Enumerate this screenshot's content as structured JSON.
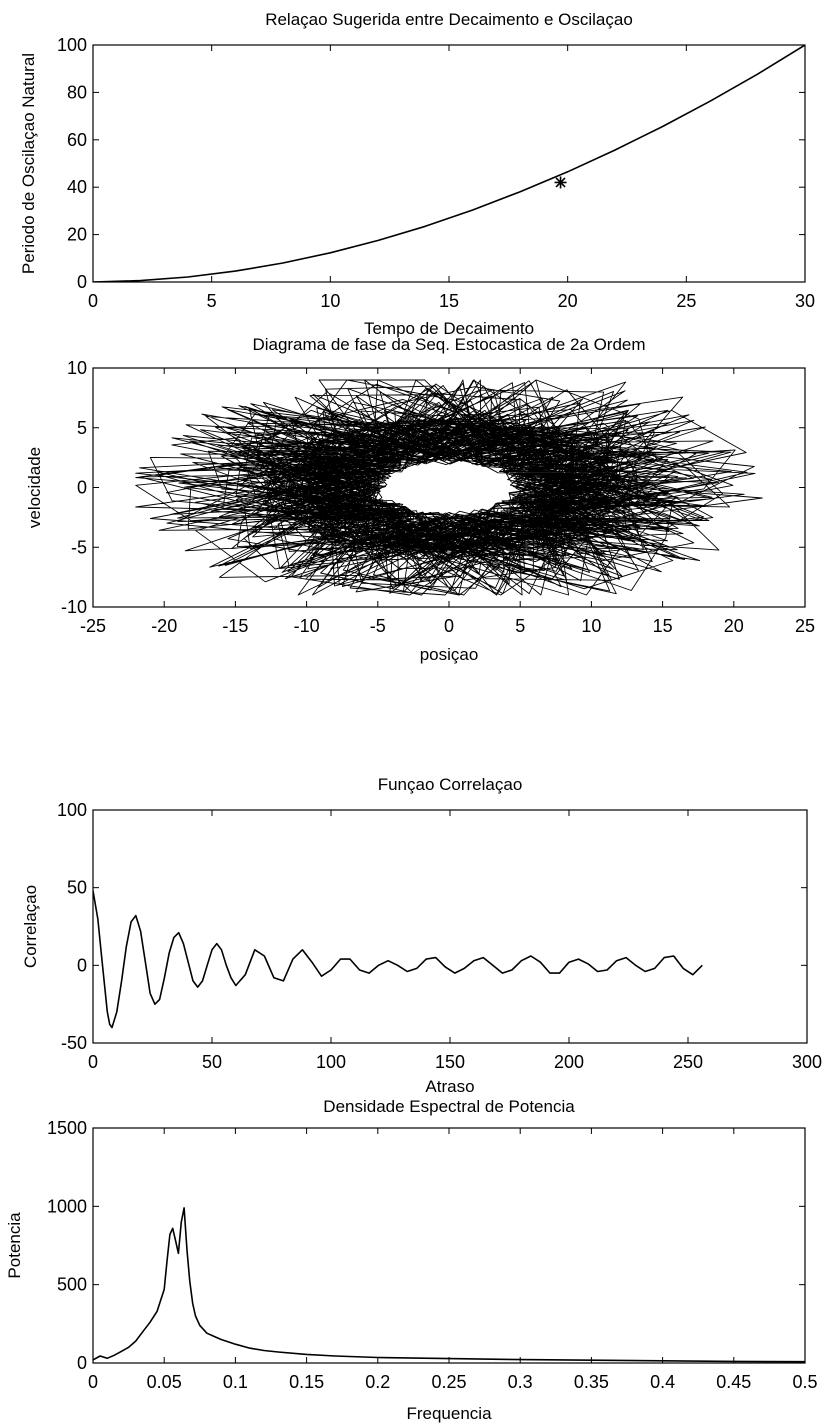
{
  "page": {
    "background": "#ffffff",
    "ink": "#000000"
  },
  "chart_data": [
    {
      "id": "c1",
      "type": "line",
      "title": "Relaçao Sugerida entre Decaimento e Oscilaçao",
      "xlabel": "Tempo de Decaimento",
      "ylabel": "Periodo de Oscilaçao Natural",
      "xlim": [
        0,
        30
      ],
      "ylim": [
        0,
        100
      ],
      "xticks": [
        0,
        5,
        10,
        15,
        20,
        25,
        30
      ],
      "yticks": [
        0,
        20,
        40,
        60,
        80,
        100
      ],
      "grid": false,
      "series": [
        {
          "x": [
            0,
            2,
            4,
            6,
            8,
            10,
            12,
            14,
            16,
            18,
            20,
            22,
            24,
            26,
            28,
            30
          ],
          "y": [
            0,
            0.6,
            2.1,
            4.6,
            8.0,
            12.3,
            17.5,
            23.5,
            30.4,
            38.1,
            46.5,
            55.7,
            65.6,
            76.3,
            87.7,
            100
          ]
        }
      ],
      "marker": {
        "symbol": "*",
        "x": 19.7,
        "y": 42
      }
    },
    {
      "id": "c2",
      "type": "line",
      "title": "Diagrama de fase da Seq. Estocastica de 2a Ordem",
      "xlabel": "posiçao",
      "ylabel": "velocidade",
      "xlim": [
        -25,
        25
      ],
      "ylim": [
        -10,
        10
      ],
      "xticks": [
        -25,
        -20,
        -15,
        -10,
        -5,
        0,
        5,
        10,
        15,
        20,
        25
      ],
      "yticks": [
        -10,
        -5,
        0,
        5,
        10
      ],
      "grid": false,
      "phase_orbit": {
        "form": "ellipse",
        "center": [
          0,
          0
        ],
        "outer_semi_axes": [
          22,
          9
        ],
        "dense_core_semi_axes": [
          13,
          6
        ]
      }
    },
    {
      "id": "c3",
      "type": "line",
      "title": "Funçao Correlaçao",
      "xlabel": "Atraso",
      "ylabel": "Correlaçao",
      "xlim": [
        0,
        300
      ],
      "ylim": [
        -50,
        100
      ],
      "xticks": [
        0,
        50,
        100,
        150,
        200,
        250,
        300
      ],
      "yticks": [
        -50,
        0,
        50,
        100
      ],
      "grid": false,
      "series": [
        {
          "x": [
            0,
            2,
            4,
            6,
            7,
            8,
            10,
            12,
            14,
            16,
            18,
            20,
            22,
            24,
            26,
            28,
            30,
            32,
            34,
            36,
            38,
            40,
            42,
            44,
            46,
            48,
            50,
            52,
            54,
            56,
            58,
            60,
            64,
            68,
            72,
            76,
            80,
            84,
            88,
            92,
            96,
            100,
            104,
            108,
            112,
            116,
            120,
            124,
            128,
            132,
            136,
            140,
            144,
            148,
            152,
            156,
            160,
            164,
            168,
            172,
            176,
            180,
            184,
            188,
            192,
            196,
            200,
            204,
            208,
            212,
            216,
            220,
            224,
            228,
            232,
            236,
            240,
            244,
            248,
            252,
            256
          ],
          "y": [
            48,
            30,
            0,
            -30,
            -38,
            -40,
            -30,
            -10,
            12,
            28,
            32,
            22,
            2,
            -18,
            -25,
            -22,
            -8,
            8,
            18,
            21,
            14,
            2,
            -10,
            -14,
            -10,
            0,
            10,
            14,
            10,
            0,
            -8,
            -13,
            -6,
            10,
            6,
            -8,
            -10,
            4,
            10,
            2,
            -7,
            -3,
            4,
            4,
            -3,
            -5,
            0,
            3,
            0,
            -4,
            -2,
            4,
            5,
            -1,
            -5,
            -2,
            3,
            5,
            0,
            -5,
            -3,
            3,
            6,
            2,
            -5,
            -5,
            2,
            4,
            1,
            -4,
            -3,
            3,
            5,
            0,
            -4,
            -2,
            5,
            6,
            -2,
            -6,
            0
          ]
        }
      ]
    },
    {
      "id": "c4",
      "type": "line",
      "title": "Densidade Espectral de Potencia",
      "xlabel": "Frequencia",
      "ylabel": "Potencia",
      "xlim": [
        0,
        0.5
      ],
      "ylim": [
        0,
        1500
      ],
      "xticks": [
        0,
        0.05,
        0.1,
        0.15,
        0.2,
        0.25,
        0.3,
        0.35,
        0.4,
        0.45,
        0.5
      ],
      "xtick_labels": [
        "0",
        "0.05",
        "0.1",
        "0.15",
        "0.2",
        "0.25",
        "0.3",
        "0.35",
        "0.4",
        "0.45",
        "0.5"
      ],
      "yticks": [
        0,
        500,
        1000,
        1500
      ],
      "grid": false,
      "series": [
        {
          "x": [
            0,
            0.005,
            0.01,
            0.015,
            0.02,
            0.025,
            0.03,
            0.035,
            0.04,
            0.045,
            0.05,
            0.052,
            0.054,
            0.056,
            0.058,
            0.06,
            0.062,
            0.064,
            0.066,
            0.068,
            0.07,
            0.072,
            0.075,
            0.08,
            0.085,
            0.09,
            0.1,
            0.11,
            0.12,
            0.13,
            0.15,
            0.17,
            0.2,
            0.25,
            0.3,
            0.35,
            0.4,
            0.45,
            0.5
          ],
          "y": [
            20,
            45,
            30,
            50,
            75,
            100,
            140,
            200,
            260,
            330,
            470,
            650,
            820,
            860,
            780,
            700,
            900,
            990,
            720,
            520,
            380,
            300,
            240,
            190,
            170,
            150,
            120,
            95,
            80,
            70,
            55,
            45,
            35,
            28,
            22,
            18,
            14,
            10,
            8
          ]
        }
      ]
    }
  ]
}
